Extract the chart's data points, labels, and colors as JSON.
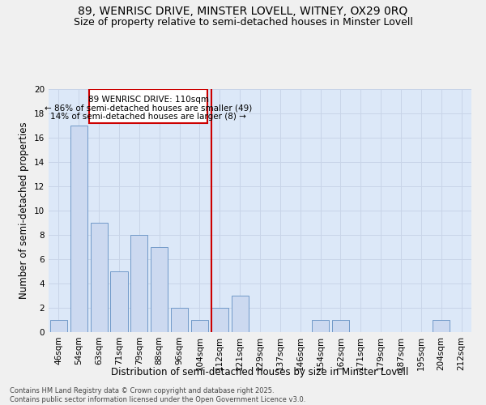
{
  "title1": "89, WENRISC DRIVE, MINSTER LOVELL, WITNEY, OX29 0RQ",
  "title2": "Size of property relative to semi-detached houses in Minster Lovell",
  "xlabel": "Distribution of semi-detached houses by size in Minster Lovell",
  "ylabel": "Number of semi-detached properties",
  "footnote": "Contains HM Land Registry data © Crown copyright and database right 2025.\nContains public sector information licensed under the Open Government Licence v3.0.",
  "categories": [
    "46sqm",
    "54sqm",
    "63sqm",
    "71sqm",
    "79sqm",
    "88sqm",
    "96sqm",
    "104sqm",
    "112sqm",
    "121sqm",
    "129sqm",
    "137sqm",
    "146sqm",
    "154sqm",
    "162sqm",
    "171sqm",
    "179sqm",
    "187sqm",
    "195sqm",
    "204sqm",
    "212sqm"
  ],
  "values": [
    1,
    17,
    9,
    5,
    8,
    7,
    2,
    1,
    2,
    3,
    0,
    0,
    0,
    1,
    1,
    0,
    0,
    0,
    0,
    1,
    0
  ],
  "bar_color": "#ccd9f0",
  "bar_edge_color": "#7099c8",
  "property_line_index": 8,
  "property_line_label": "89 WENRISC DRIVE: 110sqm",
  "pct_smaller": 86,
  "n_smaller": 49,
  "pct_larger": 14,
  "n_larger": 8,
  "annotation_box_edge": "#cc0000",
  "line_color": "#cc0000",
  "ylim": [
    0,
    20
  ],
  "yticks": [
    0,
    2,
    4,
    6,
    8,
    10,
    12,
    14,
    16,
    18,
    20
  ],
  "grid_color": "#c8d4e8",
  "background_color": "#dce8f8",
  "fig_bg_color": "#f0f0f0",
  "title_fontsize": 10,
  "subtitle_fontsize": 9,
  "axis_label_fontsize": 8.5,
  "tick_fontsize": 7.5,
  "footnote_fontsize": 6
}
